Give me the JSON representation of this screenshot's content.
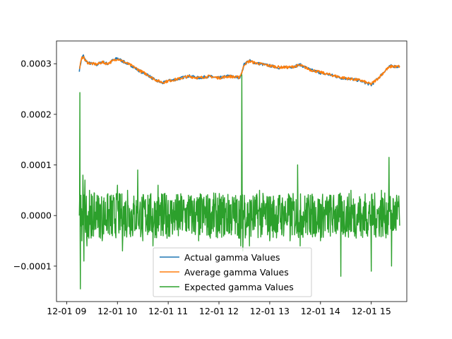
{
  "chart_data": {
    "type": "line",
    "title": "",
    "xlabel": "",
    "ylabel": "",
    "x_axis": {
      "type": "datetime",
      "range": [
        "2024-12-01 08:48",
        "2024-12-01 15:42"
      ],
      "ticks": [
        "12-01 09",
        "12-01 10",
        "12-01 11",
        "12-01 12",
        "12-01 13",
        "12-01 14",
        "12-01 15"
      ],
      "tick_hours": [
        9,
        10,
        11,
        12,
        13,
        14,
        15
      ]
    },
    "y_axis": {
      "range": [
        -0.00017,
        0.000345
      ],
      "ticks": [
        -0.0001,
        0.0,
        0.0001,
        0.0002,
        0.0003
      ],
      "tick_labels": [
        "−0.0001",
        "0.0000",
        "0.0001",
        "0.0002",
        "0.0003"
      ]
    },
    "grid": false,
    "legend": {
      "placement": "lower center"
    },
    "series": [
      {
        "name": "Actual gamma Values",
        "color": "#1f77b4",
        "x_hours": [
          9.25,
          9.27,
          9.3,
          9.33,
          9.36,
          9.42,
          9.5,
          9.6,
          9.7,
          9.8,
          9.9,
          10.0,
          10.1,
          10.2,
          10.3,
          10.4,
          10.5,
          10.6,
          10.7,
          10.8,
          10.9,
          11.0,
          11.2,
          11.4,
          11.6,
          11.8,
          12.0,
          12.2,
          12.4,
          12.45,
          12.5,
          12.6,
          12.7,
          12.8,
          13.0,
          13.2,
          13.4,
          13.6,
          13.8,
          14.0,
          14.2,
          14.4,
          14.6,
          14.8,
          14.95,
          15.0,
          15.1,
          15.2,
          15.3,
          15.4,
          15.5,
          15.56
        ],
        "values": [
          0.000287,
          0.000298,
          0.000312,
          0.000316,
          0.000308,
          0.000302,
          0.0003,
          0.000298,
          0.000304,
          0.0003,
          0.000306,
          0.000311,
          0.000305,
          0.0003,
          0.000295,
          0.000288,
          0.000282,
          0.000278,
          0.00027,
          0.000265,
          0.000262,
          0.000266,
          0.00027,
          0.000276,
          0.000272,
          0.000275,
          0.000272,
          0.000276,
          0.000272,
          0.000282,
          0.0003,
          0.000306,
          0.000302,
          0.0003,
          0.000296,
          0.000292,
          0.000293,
          0.000298,
          0.000288,
          0.000282,
          0.000278,
          0.000272,
          0.00027,
          0.000266,
          0.00026,
          0.000258,
          0.000268,
          0.000278,
          0.00029,
          0.000296,
          0.000294,
          0.000295
        ]
      },
      {
        "name": "Average gamma Values",
        "color": "#ff7f0e",
        "x_hours": [
          9.25,
          9.27,
          9.3,
          9.33,
          9.36,
          9.42,
          9.5,
          9.6,
          9.7,
          9.8,
          9.9,
          10.0,
          10.1,
          10.2,
          10.3,
          10.4,
          10.5,
          10.6,
          10.7,
          10.8,
          10.9,
          11.0,
          11.2,
          11.4,
          11.6,
          11.8,
          12.0,
          12.2,
          12.4,
          12.45,
          12.5,
          12.6,
          12.7,
          12.8,
          13.0,
          13.2,
          13.4,
          13.6,
          13.8,
          14.0,
          14.2,
          14.4,
          14.6,
          14.8,
          14.95,
          15.0,
          15.1,
          15.2,
          15.3,
          15.4,
          15.5,
          15.56
        ],
        "values": [
          0.000289,
          0.000299,
          0.000311,
          0.000314,
          0.000307,
          0.000302,
          0.0003,
          0.000299,
          0.000303,
          0.0003,
          0.000305,
          0.00031,
          0.000305,
          0.0003,
          0.000295,
          0.000289,
          0.000283,
          0.000278,
          0.000271,
          0.000266,
          0.000263,
          0.000266,
          0.00027,
          0.000275,
          0.000272,
          0.000275,
          0.000272,
          0.000275,
          0.000273,
          0.000283,
          0.000299,
          0.000305,
          0.000302,
          0.0003,
          0.000296,
          0.000293,
          0.000293,
          0.000297,
          0.000288,
          0.000283,
          0.000278,
          0.000273,
          0.00027,
          0.000267,
          0.000261,
          0.00026,
          0.000268,
          0.000278,
          0.000289,
          0.000295,
          0.000294,
          0.000295
        ]
      },
      {
        "name": "Expected gamma Values",
        "color": "#2ca02c",
        "x_hours": [
          9.25,
          9.26,
          9.27,
          9.28,
          9.3,
          9.32,
          9.34,
          9.36,
          9.4,
          9.45,
          9.5,
          9.6,
          9.7,
          9.8,
          9.9,
          10.0,
          10.1,
          10.2,
          10.3,
          10.4,
          10.5,
          10.6,
          10.7,
          10.8,
          10.9,
          11.0,
          11.2,
          11.4,
          11.6,
          11.8,
          12.0,
          12.2,
          12.4,
          12.43,
          12.45,
          12.47,
          12.5,
          12.6,
          12.8,
          13.0,
          13.2,
          13.4,
          13.55,
          13.6,
          13.8,
          14.0,
          14.2,
          14.4,
          14.6,
          14.8,
          15.0,
          15.2,
          15.35,
          15.4,
          15.5,
          15.56
        ],
        "values": [
          0.0,
          0.000243,
          -0.000145,
          4e-05,
          -5e-05,
          8e-05,
          -9e-05,
          7e-05,
          -6e-05,
          5e-05,
          -4e-05,
          4e-05,
          -5e-05,
          4e-05,
          -4e-05,
          6e-05,
          -7e-05,
          5e-05,
          -4e-05,
          9e-05,
          -5e-05,
          4e-05,
          -6e-05,
          6e-05,
          -4e-05,
          3e-05,
          -4e-05,
          4e-05,
          -5e-05,
          3e-05,
          -3e-05,
          3e-05,
          -4e-05,
          -6e-05,
          0.000278,
          -7e-05,
          4e-05,
          -6e-05,
          5e-05,
          -5e-05,
          4e-05,
          -5e-05,
          0.0001,
          -6e-05,
          4e-05,
          -5e-05,
          4e-05,
          -0.00012,
          5e-05,
          -4e-05,
          -0.00011,
          5e-05,
          0.000115,
          -0.0001,
          4e-05,
          -2e-05
        ]
      }
    ]
  }
}
